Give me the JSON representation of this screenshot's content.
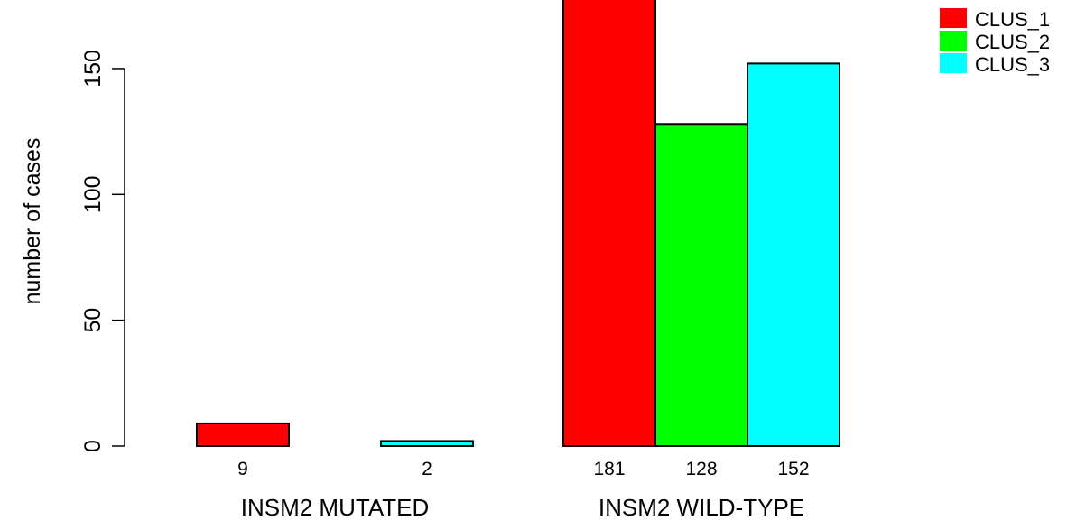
{
  "chart_data": {
    "type": "bar",
    "ylabel": "number of cases",
    "ylim": [
      0,
      190
    ],
    "yticks": [
      0,
      50,
      100,
      150
    ],
    "groups": [
      {
        "label": "INSM2 MUTATED",
        "values": [
          9,
          0,
          2
        ],
        "value_labels": [
          "9",
          "",
          "2"
        ]
      },
      {
        "label": "INSM2 WILD-TYPE",
        "values": [
          181,
          128,
          152
        ],
        "value_labels": [
          "181",
          "128",
          "152"
        ]
      }
    ],
    "series": [
      {
        "name": "CLUS_1",
        "color": "#ff0000"
      },
      {
        "name": "CLUS_2",
        "color": "#00ff00"
      },
      {
        "name": "CLUS_3",
        "color": "#00ffff"
      }
    ],
    "legend_position": "top-right",
    "grid": false
  }
}
